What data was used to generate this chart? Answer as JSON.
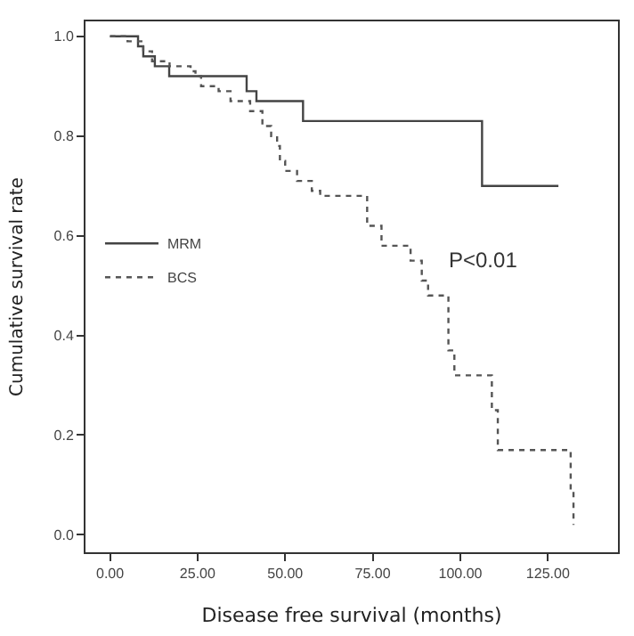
{
  "chart_data": {
    "type": "step",
    "xlabel": "Disease free survival (months)",
    "ylabel": "Cumulative survival rate",
    "series": [
      {
        "name": "MRM",
        "color": "#444444",
        "line_style": "solid",
        "x": [
          0,
          8,
          9.5,
          12.8,
          16.9,
          39,
          41.8,
          55.1,
          106.2,
          128
        ],
        "values": [
          1.0,
          0.98,
          0.96,
          0.94,
          0.92,
          0.89,
          0.87,
          0.83,
          0.7,
          0.7
        ]
      },
      {
        "name": "BCS",
        "color": "#555555",
        "line_style": "dotted",
        "x": [
          0,
          5,
          9.5,
          12,
          17,
          23,
          24.4,
          26,
          31,
          34.4,
          40,
          43.5,
          46,
          47.7,
          48.5,
          50,
          53.4,
          57.6,
          60,
          73.4,
          77.5,
          85.8,
          89,
          90.8,
          96.6,
          98.3,
          109,
          110.7,
          131.5,
          132.3
        ],
        "values": [
          1.0,
          0.99,
          0.97,
          0.95,
          0.94,
          0.93,
          0.92,
          0.9,
          0.89,
          0.87,
          0.85,
          0.82,
          0.8,
          0.78,
          0.75,
          0.73,
          0.71,
          0.69,
          0.68,
          0.62,
          0.58,
          0.55,
          0.51,
          0.48,
          0.37,
          0.32,
          0.25,
          0.17,
          0.09,
          0.02
        ]
      }
    ],
    "annotations": [
      "P<0.01"
    ],
    "xlim": [
      -7,
      145
    ],
    "ylim": [
      -0.035,
      1.03
    ],
    "xticks": [
      {
        "value": 0,
        "label": "0.00"
      },
      {
        "value": 25,
        "label": "25.00"
      },
      {
        "value": 50,
        "label": "50.00"
      },
      {
        "value": 75,
        "label": "75.00"
      },
      {
        "value": 100,
        "label": "100.00"
      },
      {
        "value": 125,
        "label": "125.00"
      }
    ],
    "yticks": [
      {
        "value": 0,
        "label": "0.0"
      },
      {
        "value": 0.2,
        "label": "0.2"
      },
      {
        "value": 0.4,
        "label": "0.4"
      },
      {
        "value": 0.6,
        "label": "0.6"
      },
      {
        "value": 0.8,
        "label": "0.8"
      },
      {
        "value": 1.0,
        "label": "1.0"
      }
    ],
    "legend": "left"
  }
}
